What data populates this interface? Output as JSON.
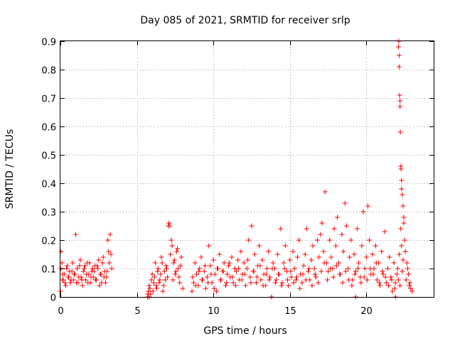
{
  "chart_data": {
    "type": "scatter",
    "title": "Day 085 of 2021, SRMTID for receiver srlp",
    "xlabel": "GPS time / hours",
    "ylabel": "SRMTID / TECUs",
    "xlim": [
      0,
      24.4
    ],
    "ylim": [
      0,
      0.9
    ],
    "x_ticks": [
      0,
      5,
      10,
      15,
      20
    ],
    "x_tick_labels": [
      "0",
      "5",
      "10",
      "15",
      "20"
    ],
    "y_ticks": [
      0,
      0.1,
      0.2,
      0.3,
      0.4,
      0.5,
      0.6,
      0.7,
      0.8,
      0.9
    ],
    "y_tick_labels": [
      "0",
      "0.1",
      "0.2",
      "0.3",
      "0.4",
      "0.5",
      "0.6",
      "0.7",
      "0.8",
      "0.9"
    ],
    "grid": true,
    "marker": "+",
    "marker_color": "#ff0000",
    "series": [
      {
        "name": "srlp",
        "x": [
          0.0,
          0.05,
          0.1,
          0.15,
          0.2,
          0.3,
          0.4,
          0.5,
          0.6,
          0.7,
          0.8,
          0.9,
          1.0,
          1.05,
          1.1,
          1.2,
          1.3,
          1.4,
          1.5,
          1.6,
          1.7,
          1.8,
          1.9,
          2.0,
          2.1,
          2.2,
          2.3,
          2.4,
          2.5,
          2.6,
          2.7,
          2.8,
          2.9,
          3.0,
          3.1,
          3.2,
          3.25,
          3.3,
          3.35,
          0.02,
          0.12,
          0.25,
          0.35,
          0.45,
          0.55,
          0.65,
          0.75,
          0.85,
          0.95,
          1.15,
          1.25,
          1.35,
          1.45,
          1.55,
          1.65,
          1.75,
          1.85,
          1.95,
          2.05,
          2.15,
          2.25,
          2.35,
          2.45,
          2.55,
          2.65,
          2.75,
          2.85,
          2.95,
          3.05,
          3.15,
          5.7,
          5.75,
          5.8,
          5.9,
          6.0,
          6.1,
          6.2,
          6.3,
          6.4,
          6.5,
          6.6,
          6.7,
          6.8,
          6.9,
          7.0,
          7.05,
          7.1,
          7.15,
          7.2,
          7.3,
          7.4,
          7.5,
          7.6,
          7.7,
          7.8,
          7.9,
          8.0,
          5.72,
          5.85,
          5.95,
          6.05,
          6.15,
          6.25,
          6.35,
          6.45,
          6.55,
          6.65,
          6.75,
          6.85,
          6.95,
          7.25,
          7.35,
          7.45,
          7.55,
          7.65,
          7.75,
          7.85,
          8.6,
          8.7,
          8.8,
          8.9,
          9.0,
          9.1,
          9.2,
          9.3,
          9.4,
          9.5,
          9.6,
          9.7,
          9.8,
          9.9,
          10.0,
          10.1,
          10.2,
          10.3,
          10.4,
          10.5,
          10.6,
          10.7,
          10.8,
          10.9,
          11.0,
          11.1,
          11.2,
          11.3,
          11.4,
          11.5,
          11.6,
          11.7,
          11.8,
          11.9,
          12.0,
          12.1,
          12.2,
          12.3,
          12.4,
          12.5,
          12.6,
          12.7,
          12.8,
          12.9,
          13.0,
          13.1,
          13.2,
          13.3,
          13.4,
          13.5,
          13.6,
          13.7,
          13.8,
          13.9,
          8.65,
          8.85,
          9.05,
          9.25,
          9.45,
          9.65,
          9.85,
          10.05,
          10.25,
          10.45,
          10.65,
          10.85,
          11.05,
          11.25,
          11.45,
          11.65,
          11.85,
          12.05,
          12.25,
          12.45,
          12.65,
          12.85,
          13.05,
          13.25,
          13.45,
          13.65,
          13.85,
          14.0,
          14.1,
          14.2,
          14.3,
          14.4,
          14.5,
          14.6,
          14.7,
          14.8,
          14.9,
          15.0,
          15.1,
          15.2,
          15.3,
          15.4,
          15.5,
          15.6,
          15.7,
          15.8,
          15.9,
          16.0,
          16.1,
          16.2,
          16.3,
          16.4,
          16.5,
          16.6,
          16.7,
          16.8,
          16.9,
          17.0,
          17.1,
          17.2,
          17.3,
          17.4,
          17.5,
          17.6,
          17.7,
          17.8,
          17.9,
          18.0,
          18.1,
          18.2,
          18.3,
          18.4,
          18.5,
          18.6,
          18.7,
          18.8,
          18.9,
          19.0,
          19.1,
          19.2,
          19.3,
          19.4,
          19.5,
          19.6,
          19.7,
          19.8,
          19.9,
          14.05,
          14.25,
          14.45,
          14.65,
          14.85,
          15.05,
          15.25,
          15.45,
          15.65,
          15.85,
          16.05,
          16.25,
          16.45,
          16.65,
          16.85,
          17.05,
          17.25,
          17.45,
          17.65,
          17.85,
          18.05,
          18.25,
          18.45,
          18.65,
          18.85,
          19.05,
          19.25,
          19.45,
          19.65,
          19.85,
          20.0,
          20.1,
          20.2,
          20.3,
          20.4,
          20.5,
          20.6,
          20.7,
          20.8,
          20.9,
          21.0,
          21.1,
          21.2,
          21.3,
          21.4,
          21.5,
          21.6,
          21.7,
          21.8,
          21.9,
          22.0,
          22.05,
          22.1,
          22.15,
          22.2,
          22.25,
          22.3,
          22.35,
          22.4,
          22.5,
          22.6,
          22.7,
          22.8,
          22.9,
          23.0,
          20.05,
          20.25,
          20.45,
          20.65,
          20.85,
          21.05,
          21.25,
          21.45,
          21.65,
          21.85,
          22.45,
          22.55,
          22.65,
          22.75,
          22.85,
          22.1,
          22.12,
          22.15,
          22.15,
          22.17,
          22.2,
          22.2,
          22.22,
          22.25,
          22.27,
          22.3,
          22.3,
          22.35,
          22.4,
          22.45,
          5.8,
          13.8,
          19.3,
          21.9
        ],
        "y": [
          0.02,
          0.16,
          0.12,
          0.08,
          0.06,
          0.05,
          0.1,
          0.07,
          0.09,
          0.06,
          0.12,
          0.08,
          0.22,
          0.05,
          0.1,
          0.07,
          0.13,
          0.06,
          0.09,
          0.11,
          0.08,
          0.05,
          0.12,
          0.07,
          0.1,
          0.09,
          0.06,
          0.11,
          0.13,
          0.08,
          0.05,
          0.14,
          0.09,
          0.07,
          0.2,
          0.12,
          0.22,
          0.15,
          0.1,
          0.1,
          0.06,
          0.08,
          0.04,
          0.11,
          0.07,
          0.05,
          0.09,
          0.06,
          0.08,
          0.05,
          0.11,
          0.07,
          0.04,
          0.1,
          0.06,
          0.12,
          0.08,
          0.05,
          0.09,
          0.07,
          0.11,
          0.06,
          0.1,
          0.04,
          0.08,
          0.12,
          0.07,
          0.05,
          0.09,
          0.16,
          0.0,
          0.02,
          0.04,
          0.01,
          0.08,
          0.05,
          0.12,
          0.03,
          0.1,
          0.06,
          0.14,
          0.02,
          0.09,
          0.11,
          0.07,
          0.25,
          0.26,
          0.25,
          0.15,
          0.18,
          0.12,
          0.08,
          0.16,
          0.1,
          0.05,
          0.14,
          0.03,
          0.01,
          0.03,
          0.06,
          0.02,
          0.07,
          0.04,
          0.09,
          0.05,
          0.08,
          0.12,
          0.04,
          0.06,
          0.1,
          0.2,
          0.06,
          0.13,
          0.09,
          0.17,
          0.07,
          0.11,
          0.02,
          0.05,
          0.12,
          0.08,
          0.04,
          0.1,
          0.14,
          0.06,
          0.09,
          0.03,
          0.07,
          0.18,
          0.11,
          0.05,
          0.13,
          0.08,
          0.02,
          0.1,
          0.15,
          0.06,
          0.09,
          0.12,
          0.04,
          0.08,
          0.11,
          0.07,
          0.14,
          0.05,
          0.1,
          0.09,
          0.13,
          0.06,
          0.16,
          0.08,
          0.12,
          0.04,
          0.1,
          0.2,
          0.07,
          0.25,
          0.09,
          0.15,
          0.05,
          0.11,
          0.18,
          0.06,
          0.13,
          0.08,
          0.04,
          0.1,
          0.16,
          0.07,
          0.0,
          0.12,
          0.07,
          0.04,
          0.09,
          0.06,
          0.11,
          0.05,
          0.08,
          0.03,
          0.1,
          0.06,
          0.09,
          0.05,
          0.12,
          0.07,
          0.04,
          0.1,
          0.06,
          0.08,
          0.13,
          0.05,
          0.09,
          0.07,
          0.11,
          0.04,
          0.08,
          0.06,
          0.1,
          0.1,
          0.06,
          0.15,
          0.08,
          0.24,
          0.05,
          0.12,
          0.18,
          0.09,
          0.04,
          0.13,
          0.07,
          0.16,
          0.1,
          0.06,
          0.14,
          0.2,
          0.08,
          0.05,
          0.11,
          0.15,
          0.24,
          0.09,
          0.06,
          0.13,
          0.18,
          0.1,
          0.07,
          0.2,
          0.14,
          0.22,
          0.26,
          0.16,
          0.37,
          0.12,
          0.09,
          0.2,
          0.14,
          0.1,
          0.24,
          0.18,
          0.28,
          0.12,
          0.08,
          0.22,
          0.16,
          0.33,
          0.25,
          0.1,
          0.14,
          0.2,
          0.06,
          0.15,
          0.09,
          0.24,
          0.12,
          0.07,
          0.18,
          0.3,
          0.1,
          0.05,
          0.08,
          0.04,
          0.1,
          0.06,
          0.09,
          0.05,
          0.07,
          0.03,
          0.08,
          0.06,
          0.1,
          0.04,
          0.08,
          0.05,
          0.09,
          0.12,
          0.06,
          0.1,
          0.07,
          0.11,
          0.08,
          0.05,
          0.09,
          0.06,
          0.04,
          0.08,
          0.1,
          0.05,
          0.07,
          0.14,
          0.32,
          0.2,
          0.08,
          0.15,
          0.1,
          0.18,
          0.06,
          0.12,
          0.04,
          0.16,
          0.08,
          0.23,
          0.05,
          0.1,
          0.14,
          0.07,
          0.02,
          0.12,
          0.05,
          0.08,
          0.1,
          0.06,
          0.15,
          0.04,
          0.24,
          0.18,
          0.09,
          0.13,
          0.2,
          0.06,
          0.1,
          0.04,
          0.03,
          0.02,
          0.06,
          0.1,
          0.08,
          0.12,
          0.05,
          0.09,
          0.07,
          0.04,
          0.06,
          0.03,
          0.26,
          0.16,
          0.12,
          0.08,
          0.05,
          0.88,
          0.9,
          0.85,
          0.81,
          0.71,
          0.69,
          0.67,
          0.58,
          0.46,
          0.45,
          0.41,
          0.38,
          0.36,
          0.32,
          0.28,
          0.0,
          0.0,
          0.0,
          0.0
        ]
      }
    ]
  }
}
